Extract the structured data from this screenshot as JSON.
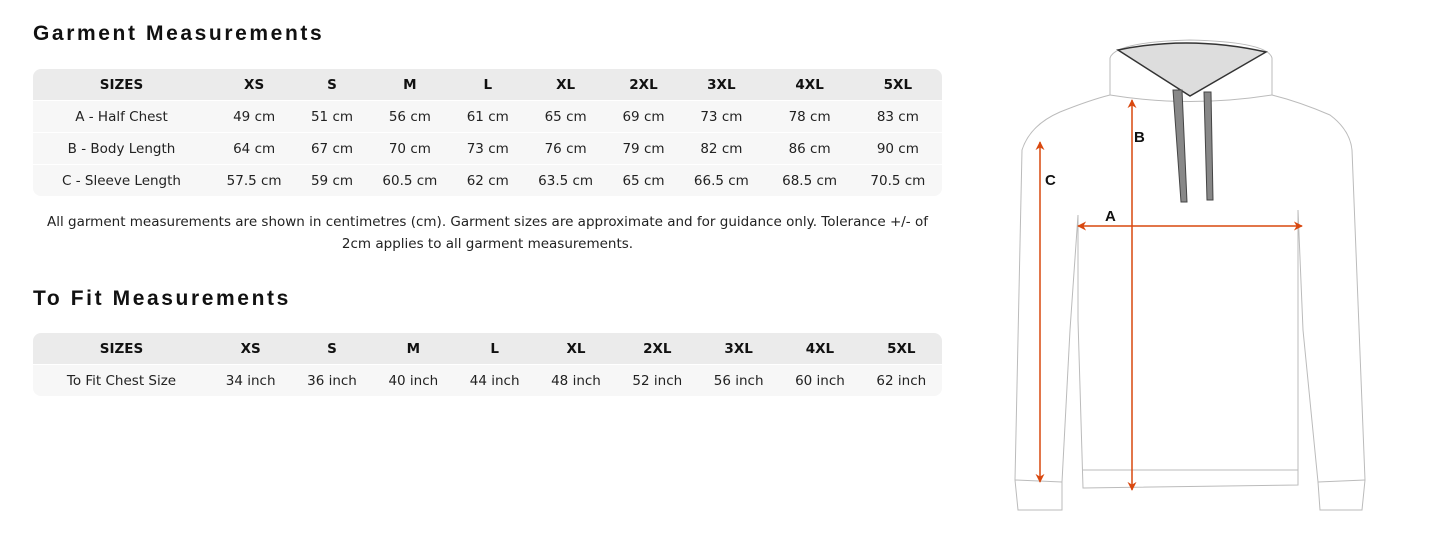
{
  "garment": {
    "title": "Garment Measurements",
    "headers": [
      "SIZES",
      "XS",
      "S",
      "M",
      "L",
      "XL",
      "2XL",
      "3XL",
      "4XL",
      "5XL"
    ],
    "rows": [
      [
        "A - Half Chest",
        "49 cm",
        "51 cm",
        "56 cm",
        "61 cm",
        "65 cm",
        "69 cm",
        "73 cm",
        "78 cm",
        "83 cm"
      ],
      [
        "B - Body Length",
        "64 cm",
        "67 cm",
        "70 cm",
        "73 cm",
        "76 cm",
        "79 cm",
        "82 cm",
        "86 cm",
        "90 cm"
      ],
      [
        "C - Sleeve Length",
        "57.5 cm",
        "59 cm",
        "60.5 cm",
        "62 cm",
        "63.5 cm",
        "65 cm",
        "66.5 cm",
        "68.5 cm",
        "70.5 cm"
      ]
    ],
    "note": "All garment measurements are shown in centimetres (cm). Garment sizes are approximate and for guidance only. Tolerance +/- of 2cm applies to all garment measurements."
  },
  "fit": {
    "title": "To Fit Measurements",
    "headers": [
      "SIZES",
      "XS",
      "S",
      "M",
      "L",
      "XL",
      "2XL",
      "3XL",
      "4XL",
      "5XL"
    ],
    "rows": [
      [
        "To Fit Chest Size",
        "34 inch",
        "36 inch",
        "40 inch",
        "44 inch",
        "48 inch",
        "52 inch",
        "56 inch",
        "60 inch",
        "62 inch"
      ]
    ]
  },
  "diagram": {
    "label_a": "A",
    "label_b": "B",
    "label_c": "C",
    "arrow_color": "#d9480f"
  }
}
